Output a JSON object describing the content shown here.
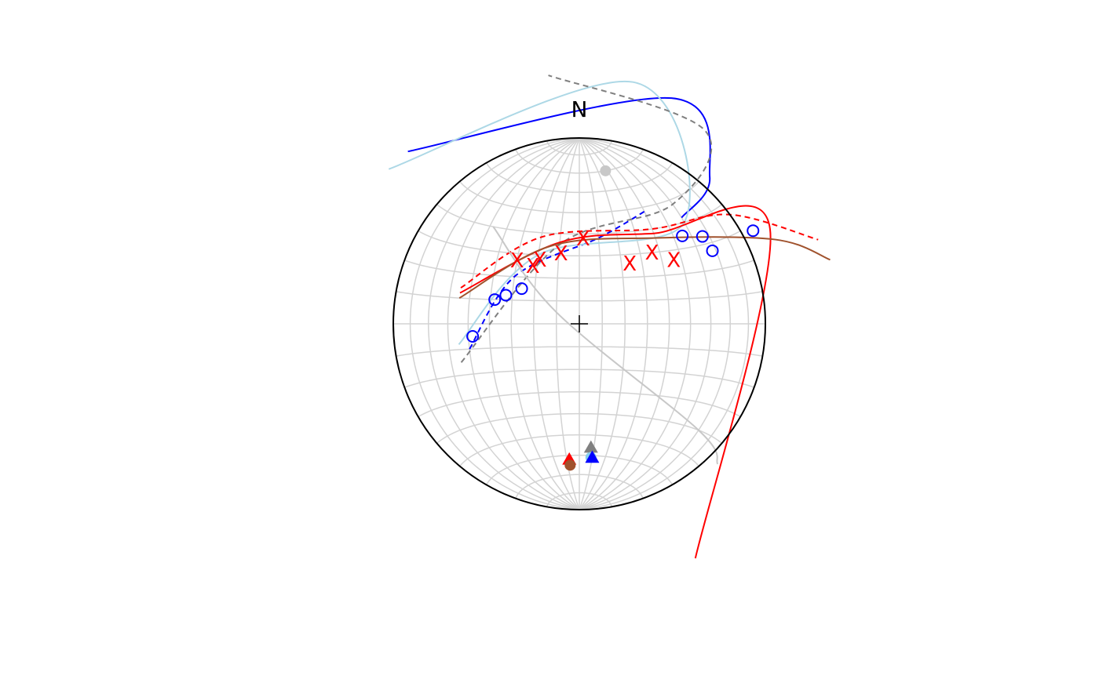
{
  "chart_data": {
    "type": "scatter",
    "projection": "equal-area stereonet",
    "north_label": "N",
    "net_grid": {
      "visible": true,
      "interval_deg": 10,
      "color": "#d3d3d3"
    },
    "center_mark": "+",
    "great_circles": [
      {
        "color": "#0000ff",
        "style": "solid",
        "points": [
          [
            60,
            42
          ],
          [
            100,
            48
          ],
          [
            160,
            40
          ],
          [
            215,
            30
          ]
        ]
      },
      {
        "color": "#0000ff",
        "style": "dashed",
        "points": [
          [
            -50,
            -10
          ],
          [
            -30,
            20
          ],
          [
            10,
            38
          ],
          [
            40,
            48
          ]
        ]
      },
      {
        "color": "#add8e6",
        "style": "solid",
        "points": [
          [
            -55,
            -8
          ],
          [
            -20,
            30
          ],
          [
            60,
            40
          ],
          [
            170,
            38
          ],
          [
            215,
            25
          ]
        ]
      },
      {
        "color": "#808080",
        "style": "dashed",
        "points": [
          [
            -55,
            -15
          ],
          [
            -10,
            35
          ],
          [
            60,
            48
          ],
          [
            140,
            45
          ],
          [
            185,
            35
          ]
        ]
      },
      {
        "color": "#ff0000",
        "style": "solid",
        "points": [
          [
            -55,
            12
          ],
          [
            -10,
            36
          ],
          [
            40,
            38
          ],
          [
            110,
            25
          ],
          [
            175,
            -10
          ]
        ]
      },
      {
        "color": "#ff0000",
        "style": "dashed",
        "points": [
          [
            -55,
            14
          ],
          [
            -20,
            38
          ],
          [
            40,
            40
          ],
          [
            90,
            36
          ],
          [
            150,
            10
          ]
        ]
      },
      {
        "color": "#a0522d",
        "style": "solid",
        "points": [
          [
            -55,
            10
          ],
          [
            -15,
            34
          ],
          [
            40,
            36
          ],
          [
            110,
            22
          ],
          [
            160,
            5
          ]
        ]
      },
      {
        "color": "#c8c8c8",
        "style": "solid",
        "points": [
          [
            -48,
            40
          ],
          [
            -10,
            5
          ],
          [
            70,
            -40
          ],
          [
            100,
            -45
          ]
        ]
      }
    ],
    "series": [
      {
        "marker": "circle-open",
        "color": "#0000ff",
        "points": [
          [
            -48,
            -5
          ],
          [
            -38,
            10
          ],
          [
            -33,
            12
          ],
          [
            -26,
            15
          ],
          [
            55,
            35
          ],
          [
            66,
            33
          ],
          [
            68,
            27
          ],
          [
            98,
            28
          ]
        ]
      },
      {
        "marker": "x",
        "color": "#ff0000",
        "points": [
          [
            -30,
            27
          ],
          [
            -22,
            25
          ],
          [
            -19,
            28
          ],
          [
            -9,
            31
          ],
          [
            2,
            38
          ],
          [
            24,
            26
          ],
          [
            36,
            30
          ],
          [
            46,
            26
          ]
        ]
      },
      {
        "marker": "circle-filled",
        "color": "#c8c8c8",
        "points": [
          [
            28,
            70
          ]
        ]
      },
      {
        "marker": "triangle-filled",
        "color": "#ff0000",
        "points": [
          [
            -8,
            -62
          ]
        ]
      },
      {
        "marker": "circle-filled",
        "color": "#a0522d",
        "points": [
          [
            -8,
            -65
          ]
        ]
      },
      {
        "marker": "triangle-filled",
        "color": "#808080",
        "points": [
          [
            8,
            -56
          ]
        ]
      },
      {
        "marker": "circle-filled",
        "color": "#87ceeb",
        "points": [
          [
            9,
            -61
          ]
        ]
      },
      {
        "marker": "triangle-filled",
        "color": "#0000ff",
        "points": [
          [
            10,
            -61
          ]
        ]
      }
    ]
  }
}
